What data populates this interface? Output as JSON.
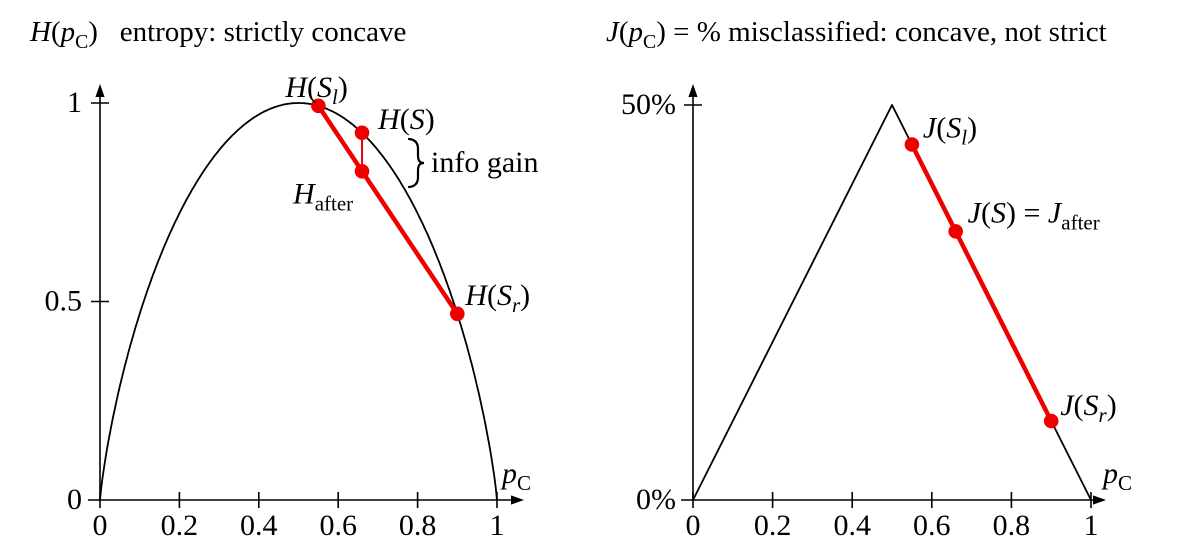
{
  "page": {
    "background": "#ffffff",
    "ink": "#000000",
    "accent_red": "#ee0000"
  },
  "chart_data": [
    {
      "id": "entropy-plot",
      "type": "line",
      "title": "H(p_C)   entropy: strictly concave",
      "title_segments": [
        {
          "t": "H",
          "s": "i"
        },
        {
          "t": "(",
          "s": "r"
        },
        {
          "t": "p",
          "s": "i"
        },
        {
          "t": "C",
          "s": "r",
          "sub": true
        },
        {
          "t": ")",
          "s": "r"
        },
        {
          "t": "   entropy: strictly concave",
          "s": "r"
        }
      ],
      "xlabel": "p_C",
      "xlabel_segments": [
        {
          "t": "p",
          "s": "i"
        },
        {
          "t": "C",
          "s": "r",
          "sub": true
        }
      ],
      "xlim": [
        0,
        1
      ],
      "ylim": [
        0,
        1
      ],
      "grid": false,
      "legend": null,
      "x_ticks": [
        {
          "v": 0,
          "label": "0"
        },
        {
          "v": 0.2,
          "label": "0.2"
        },
        {
          "v": 0.4,
          "label": "0.4"
        },
        {
          "v": 0.6,
          "label": "0.6"
        },
        {
          "v": 0.8,
          "label": "0.8"
        },
        {
          "v": 1,
          "label": "1"
        }
      ],
      "y_ticks": [
        {
          "v": 0,
          "label": "0"
        },
        {
          "v": 0.5,
          "label": "0.5"
        },
        {
          "v": 1,
          "label": "1"
        }
      ],
      "curve": {
        "kind": "binary_entropy",
        "formula": "H(p) = -p log2 p - (1-p) log2 (1-p)"
      },
      "points": [
        {
          "id": "H-Sl",
          "label": "H(S_l)",
          "p": 0.55,
          "value": 0.993,
          "label_offset": [
            -33,
            -9
          ],
          "segments": [
            {
              "t": "H",
              "s": "i"
            },
            {
              "t": "(",
              "s": "r"
            },
            {
              "t": "S",
              "s": "i"
            },
            {
              "t": "l",
              "s": "i",
              "sub": true
            },
            {
              "t": ")",
              "s": "r"
            }
          ]
        },
        {
          "id": "H-S",
          "label": "H(S)",
          "p": 0.66,
          "value": 0.925,
          "label_offset": [
            16,
            -4
          ],
          "segments": [
            {
              "t": "H",
              "s": "i"
            },
            {
              "t": "(",
              "s": "r"
            },
            {
              "t": "S",
              "s": "i"
            },
            {
              "t": ")",
              "s": "r"
            }
          ]
        },
        {
          "id": "H-after",
          "label": "H_after",
          "p": 0.66,
          "value": 0.828,
          "label_offset": [
            -69,
            32
          ],
          "segments": [
            {
              "t": "H",
              "s": "i"
            },
            {
              "t": "after",
              "s": "r",
              "sub": true
            }
          ]
        },
        {
          "id": "H-Sr",
          "label": "H(S_r)",
          "p": 0.9,
          "value": 0.469,
          "label_offset": [
            8,
            -9
          ],
          "segments": [
            {
              "t": "H",
              "s": "i"
            },
            {
              "t": "(",
              "s": "r"
            },
            {
              "t": "S",
              "s": "i"
            },
            {
              "t": "r",
              "s": "i",
              "sub": true
            },
            {
              "t": ")",
              "s": "r"
            }
          ]
        }
      ],
      "chord": {
        "from": 0,
        "to": 3
      },
      "drop": {
        "from": 1,
        "to": 2
      },
      "annotation": {
        "label": "info gain"
      }
    },
    {
      "id": "misclassification-plot",
      "type": "line",
      "title": "J(p_C) = % misclassified: concave, not strict",
      "title_segments": [
        {
          "t": "J",
          "s": "i"
        },
        {
          "t": "(",
          "s": "r"
        },
        {
          "t": "p",
          "s": "i"
        },
        {
          "t": "C",
          "s": "r",
          "sub": true
        },
        {
          "t": ")",
          "s": "r"
        },
        {
          "t": " = % misclassified: concave, not strict",
          "s": "r"
        }
      ],
      "xlabel": "p_C",
      "xlabel_segments": [
        {
          "t": "p",
          "s": "i"
        },
        {
          "t": "C",
          "s": "r",
          "sub": true
        }
      ],
      "xlim": [
        0,
        1
      ],
      "ylim": [
        0,
        0.5
      ],
      "grid": false,
      "legend": null,
      "x_ticks": [
        {
          "v": 0,
          "label": "0"
        },
        {
          "v": 0.2,
          "label": "0.2"
        },
        {
          "v": 0.4,
          "label": "0.4"
        },
        {
          "v": 0.6,
          "label": "0.6"
        },
        {
          "v": 0.8,
          "label": "0.8"
        },
        {
          "v": 1,
          "label": "1"
        }
      ],
      "y_ticks": [
        {
          "v": 0,
          "label": "0%"
        },
        {
          "v": 0.5,
          "label": "50%"
        }
      ],
      "curve": {
        "kind": "piecewise_linear",
        "formula": "J(p) = min(p, 1-p)",
        "vertices": [
          [
            0,
            0
          ],
          [
            0.5,
            0.5
          ],
          [
            1,
            0
          ]
        ]
      },
      "points": [
        {
          "id": "J-Sl",
          "label": "J(S_l)",
          "p": 0.55,
          "value": 0.45,
          "label_offset": [
            11,
            -7
          ],
          "segments": [
            {
              "t": "J",
              "s": "i"
            },
            {
              "t": "(",
              "s": "r"
            },
            {
              "t": "S",
              "s": "i"
            },
            {
              "t": "l",
              "s": "i",
              "sub": true
            },
            {
              "t": ")",
              "s": "r"
            }
          ]
        },
        {
          "id": "J-S-after",
          "label": "J(S) = J_after",
          "p": 0.66,
          "value": 0.34,
          "label_offset": [
            12,
            -9
          ],
          "segments": [
            {
              "t": "J",
              "s": "i"
            },
            {
              "t": "(",
              "s": "r"
            },
            {
              "t": "S",
              "s": "i"
            },
            {
              "t": ")",
              "s": "r"
            },
            {
              "t": " = ",
              "s": "r"
            },
            {
              "t": "J",
              "s": "i"
            },
            {
              "t": "after",
              "s": "r",
              "sub": true
            }
          ]
        },
        {
          "id": "J-Sr",
          "label": "J(S_r)",
          "p": 0.9,
          "value": 0.1,
          "label_offset": [
            9,
            -6
          ],
          "segments": [
            {
              "t": "J",
              "s": "i"
            },
            {
              "t": "(",
              "s": "r"
            },
            {
              "t": "S",
              "s": "i"
            },
            {
              "t": "r",
              "s": "i",
              "sub": true
            },
            {
              "t": ")",
              "s": "r"
            }
          ]
        }
      ],
      "chord": {
        "from": 0,
        "to": 2
      }
    }
  ]
}
